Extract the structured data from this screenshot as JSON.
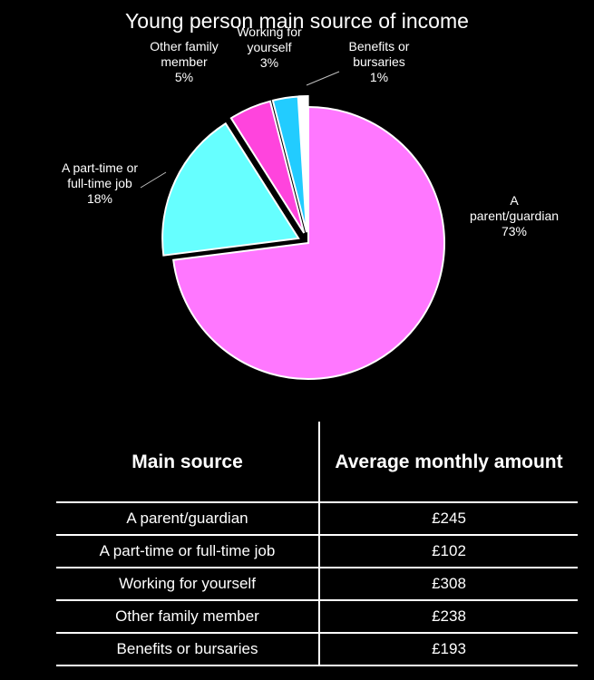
{
  "chart_data": {
    "type": "pie",
    "title": "Young person main source of income",
    "slices": [
      {
        "label": [
          "A",
          "parent/guardian"
        ],
        "value": 73,
        "display": "73%",
        "color": "#ff77ff"
      },
      {
        "label": [
          "A part-time or",
          "full-time job"
        ],
        "value": 18,
        "display": "18%",
        "color": "#66ffff"
      },
      {
        "label": [
          "Other family",
          "member"
        ],
        "value": 5,
        "display": "5%",
        "color": "#ff44dd"
      },
      {
        "label": [
          "Working for",
          "yourself"
        ],
        "value": 3,
        "display": "3%",
        "color": "#22ccff"
      },
      {
        "label": [
          "Benefits or",
          "bursaries"
        ],
        "value": 1,
        "display": "1%",
        "color": "#ffffff"
      }
    ]
  },
  "table": {
    "headers": [
      "Main source",
      "Average monthly amount"
    ],
    "rows": [
      [
        "A parent/guardian",
        "£245"
      ],
      [
        "A part-time or full-time job",
        "£102"
      ],
      [
        "Working for yourself",
        "£308"
      ],
      [
        "Other family member",
        "£238"
      ],
      [
        "Benefits or bursaries",
        "£193"
      ]
    ]
  }
}
